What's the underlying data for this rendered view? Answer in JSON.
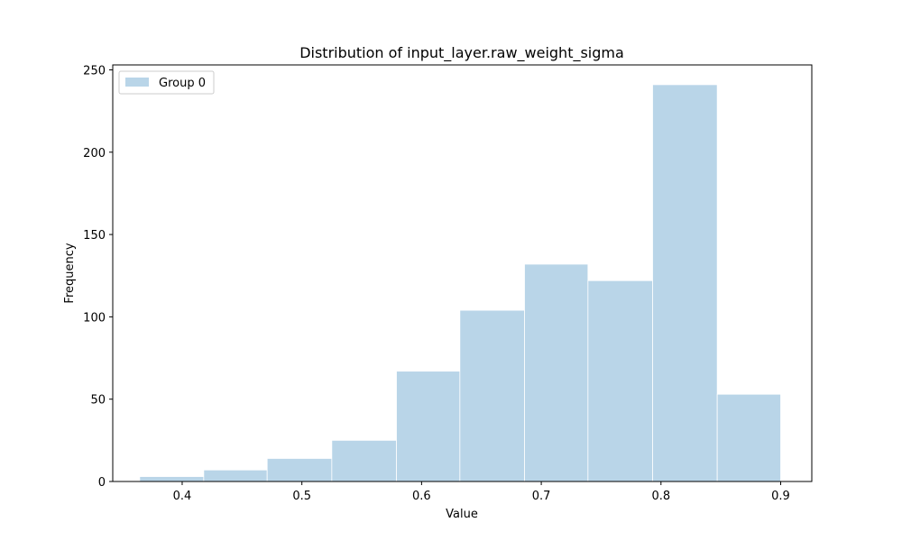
{
  "chart_data": {
    "type": "bar",
    "title": "Distribution of input_layer.raw_weight_sigma",
    "xlabel": "Value",
    "ylabel": "Frequency",
    "xlim": [
      0.342,
      0.926
    ],
    "ylim": [
      0,
      253
    ],
    "xticks": [
      0.4,
      0.5,
      0.6,
      0.7,
      0.8,
      0.9
    ],
    "xtick_labels": [
      "0.4",
      "0.5",
      "0.6",
      "0.7",
      "0.8",
      "0.9"
    ],
    "yticks": [
      0,
      50,
      100,
      150,
      200,
      250
    ],
    "ytick_labels": [
      "0",
      "50",
      "100",
      "150",
      "200",
      "250"
    ],
    "grid": false,
    "legend_position": "top-left",
    "series": [
      {
        "name": "Group 0",
        "color": "#b9d5e8",
        "bins": [
          {
            "x0": 0.3645,
            "x1": 0.418,
            "count": 3
          },
          {
            "x0": 0.418,
            "x1": 0.471,
            "count": 7
          },
          {
            "x0": 0.471,
            "x1": 0.525,
            "count": 14
          },
          {
            "x0": 0.525,
            "x1": 0.579,
            "count": 25
          },
          {
            "x0": 0.579,
            "x1": 0.632,
            "count": 67
          },
          {
            "x0": 0.632,
            "x1": 0.686,
            "count": 104
          },
          {
            "x0": 0.686,
            "x1": 0.739,
            "count": 132
          },
          {
            "x0": 0.739,
            "x1": 0.793,
            "count": 122
          },
          {
            "x0": 0.793,
            "x1": 0.847,
            "count": 241
          },
          {
            "x0": 0.847,
            "x1": 0.9,
            "count": 53
          }
        ]
      }
    ]
  }
}
